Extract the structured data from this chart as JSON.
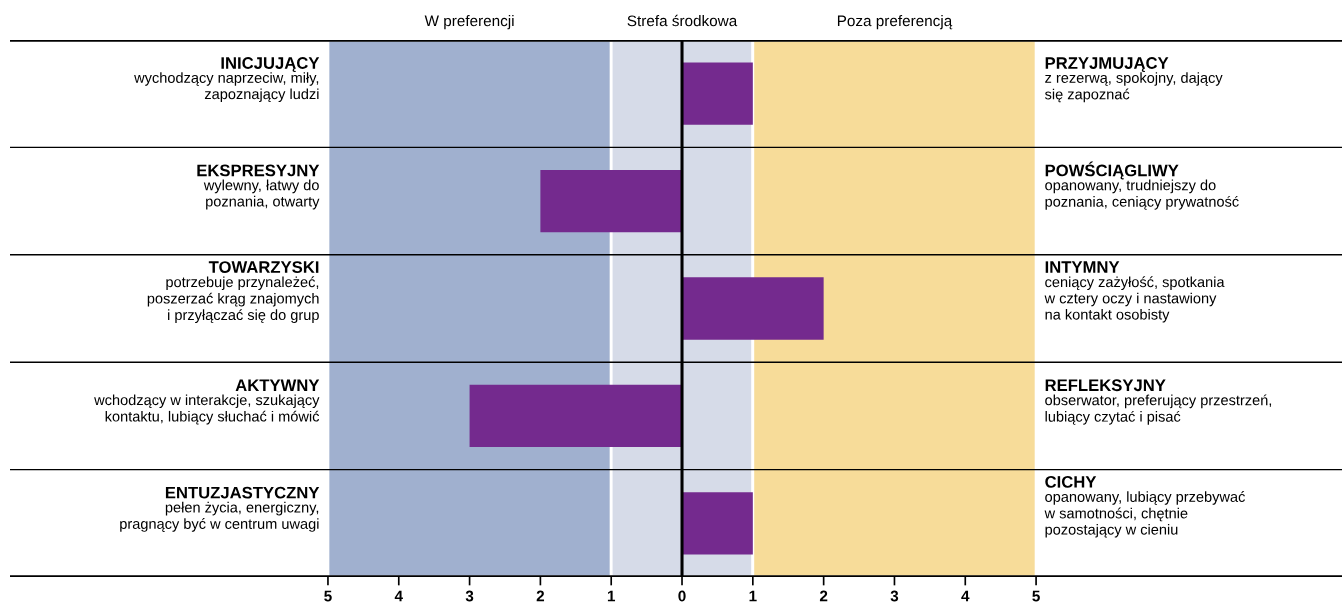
{
  "chart_data": {
    "type": "bar",
    "orientation": "horizontal",
    "categories": [
      "INICJUJĄCY\nwychodzący naprzeciw, miły,\nzapoznający ludzi",
      "EKSPRESYJNY\nwylewny, łatwy do\npoznania, otwarty",
      "TOWARZYSKI\npotrzebuje przynależeć,\nposzerzać krąg znajomych\ni przyłączać się do grup",
      "AKTYWNY\nwchodzący w interakcje, szukający\nkontaktu, lubiący słuchać i mówić",
      "ENTUZJASTYCZNY\npełen życia, energiczny,\npragnący być w centrum uwagi"
    ],
    "values": [
      1,
      -2,
      2,
      -3,
      1
    ],
    "color": "#742a8e",
    "xlim": [
      -9.49,
      9.32
    ],
    "xticks": [
      {
        "value": -5,
        "label": "5"
      },
      {
        "value": -4,
        "label": "4"
      },
      {
        "value": -3,
        "label": "3"
      },
      {
        "value": -2,
        "label": "2"
      },
      {
        "value": -1,
        "label": "1"
      },
      0,
      1,
      2,
      3,
      4,
      5
    ],
    "bands": [
      {
        "axis": "x",
        "from": -5,
        "to": -1,
        "label": "W preferencji",
        "color": "#a0b0cf"
      },
      {
        "axis": "x",
        "from": -1,
        "to": 1,
        "label": "Strefa środkowa",
        "color": "#d6dbe8"
      },
      {
        "axis": "x",
        "from": 1,
        "to": 5,
        "label": "Poza preferencją",
        "color": "#f7dc99"
      }
    ],
    "ref_lines": [
      {
        "axis": "x",
        "value": 0,
        "color": "#000000"
      }
    ],
    "grid": false,
    "annotations": [
      "PRZYJMUJĄCY\nz rezerwą, spokojny, dający\nsię zapoznać",
      "POWŚCIĄGLIWY\nopanowany, trudniejszy do\npoznania, ceniący prywatność",
      "INTYMNY\nceniący zażyłość, spotkania\nw cztery oczy i nastawiony\nna kontakt osobisty",
      "REFLEKSYJNY\nobserwator, preferujący przestrzeń,\nlubiący czytać i pisać",
      "CICHY\nopanowany, lubiący przebywać\nw samotności, chętnie\npozostający w cieniu"
    ]
  }
}
